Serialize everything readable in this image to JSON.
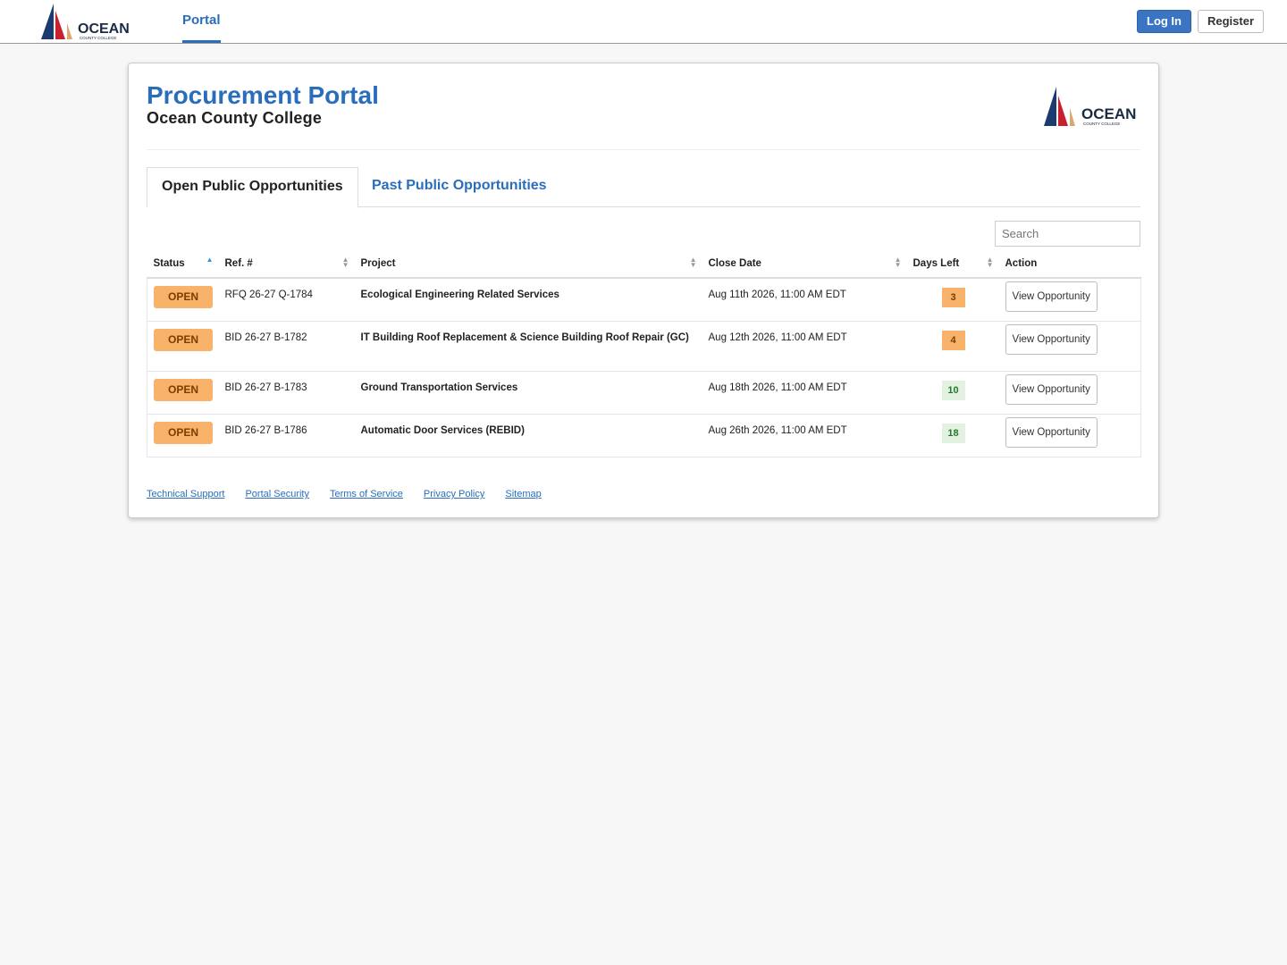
{
  "nav": {
    "logo": {
      "name": "OCEAN",
      "sub": "COUNTY COLLEGE"
    },
    "tabs": [
      "Portal"
    ],
    "buttons": [
      "Log In",
      "Register"
    ]
  },
  "header": {
    "title": "Procurement Portal",
    "subtitle": "Ocean County College",
    "logo": {
      "name": "OCEAN",
      "sub": "COUNTY COLLEGE"
    }
  },
  "tabs": [
    "Open Public Opportunities",
    "Past Public Opportunities"
  ],
  "search": {
    "placeholder": "Search"
  },
  "table": {
    "columns": [
      "Status",
      "Ref. #",
      "Project",
      "Close Date",
      "Days Left",
      "Action"
    ],
    "rows": [
      {
        "status": "OPEN",
        "ref": "RFQ 26-27 Q-1784",
        "project": "Ecological Engineering Related Services",
        "close_date": "Aug 11th 2026, 11:00 AM EDT",
        "days_left": 3,
        "days_left_color": "#f8b26a",
        "action": "View Opportunity"
      },
      {
        "status": "OPEN",
        "ref": "BID 26-27 B-1782",
        "project": "IT Building Roof Replacement & Science Building Roof Repair (GC)",
        "close_date": "Aug 12th 2026, 11:00 AM EDT",
        "days_left": 4,
        "days_left_color": "#f8b26a",
        "action": "View Opportunity"
      },
      {
        "status": "OPEN",
        "ref": "BID 26-27 B-1783",
        "project": "Ground Transportation Services",
        "close_date": "Aug 18th 2026, 11:00 AM EDT",
        "days_left": 10,
        "days_left_color": "#e3f1e1",
        "action": "View Opportunity"
      },
      {
        "status": "OPEN",
        "ref": "BID 26-27 B-1786",
        "project": "Automatic Door Services (REBID)",
        "close_date": "Aug 26th 2026, 11:00 AM EDT",
        "days_left": 18,
        "days_left_color": "#e3f1e1",
        "action": "View Opportunity"
      }
    ]
  },
  "footer": [
    "Technical Support",
    "Portal Security",
    "Terms of Service",
    "Privacy Policy",
    "Sitemap"
  ]
}
